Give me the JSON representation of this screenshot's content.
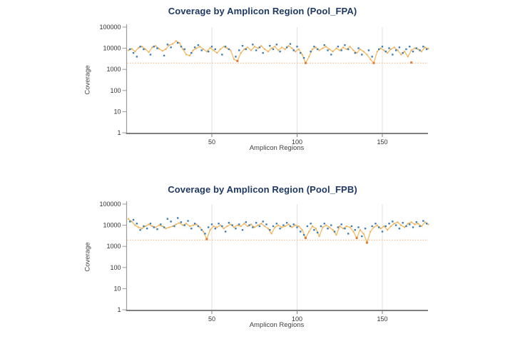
{
  "page": {
    "background": "#ffffff"
  },
  "colors": {
    "title": "#1f3864",
    "line": "#f2c06a",
    "line_marker": "#eab05e",
    "scatter": "#3d7eb8",
    "low_marker": "#e07b39",
    "threshold": "#f4bc8e",
    "grid": "#e0e0e0",
    "y_axis": "#9a9a9a",
    "x_axis": "#7f7f7f",
    "tick_text": "#333333",
    "axis_label_text": "#3f3f3f"
  },
  "chart_data": [
    {
      "type": "line",
      "title": "Coverage by Amplicon Region (Pool_FPA)",
      "xlabel": "Amplicon Regions",
      "ylabel": "Coverage",
      "x_ticks": [
        50,
        100,
        150
      ],
      "y_ticks": [
        1,
        10,
        100,
        1000,
        10000,
        100000
      ],
      "xlim": [
        0,
        177
      ],
      "ylim": [
        1,
        100000
      ],
      "y_scale": "log",
      "grid": "vertical-only",
      "legend": "none",
      "threshold_line": 2000,
      "series": [
        {
          "name": "amplicon-coverage-line",
          "type": "line",
          "x_start": 1,
          "x_step": 2,
          "values": [
            8000,
            9500,
            7000,
            10500,
            12000,
            9000,
            6500,
            11000,
            13000,
            9500,
            7500,
            9000,
            14000,
            16000,
            22000,
            18000,
            9000,
            5000,
            4500,
            8000,
            10000,
            12000,
            9000,
            7000,
            10500,
            8000,
            6000,
            9000,
            12000,
            10000,
            8000,
            3000,
            2500,
            6000,
            9000,
            11000,
            8000,
            12000,
            10000,
            13000,
            9000,
            7000,
            10000,
            12000,
            8000,
            11000,
            9000,
            13000,
            10000,
            7000,
            9000,
            5000,
            2000,
            4000,
            9000,
            11000,
            8000,
            10000,
            12000,
            9000,
            7000,
            10000,
            8000,
            11000,
            9000,
            12000,
            8000,
            6000,
            9000,
            7000,
            5000,
            3000,
            2000,
            7000,
            10000,
            8000,
            6000,
            9000,
            11000,
            8000,
            5000,
            7000,
            4000,
            8000,
            10000,
            9000,
            7000,
            11000,
            9500
          ]
        },
        {
          "name": "coverage-scatter",
          "type": "scatter",
          "points": [
            [
              2,
              9000
            ],
            [
              4,
              6000
            ],
            [
              6,
              4000
            ],
            [
              8,
              12000
            ],
            [
              10,
              9000
            ],
            [
              14,
              5000
            ],
            [
              16,
              12000
            ],
            [
              18,
              10000
            ],
            [
              22,
              4500
            ],
            [
              24,
              15000
            ],
            [
              26,
              11000
            ],
            [
              30,
              18000
            ],
            [
              32,
              12000
            ],
            [
              34,
              9000
            ],
            [
              38,
              6000
            ],
            [
              40,
              11000
            ],
            [
              42,
              14000
            ],
            [
              44,
              8000
            ],
            [
              48,
              7000
            ],
            [
              50,
              12000
            ],
            [
              52,
              9000
            ],
            [
              56,
              5000
            ],
            [
              58,
              12000
            ],
            [
              60,
              9000
            ],
            [
              64,
              4000
            ],
            [
              66,
              8000
            ],
            [
              68,
              13000
            ],
            [
              70,
              9000
            ],
            [
              74,
              15000
            ],
            [
              76,
              8000
            ],
            [
              78,
              11000
            ],
            [
              80,
              6000
            ],
            [
              84,
              13000
            ],
            [
              86,
              9000
            ],
            [
              88,
              15000
            ],
            [
              90,
              7000
            ],
            [
              94,
              11000
            ],
            [
              96,
              16000
            ],
            [
              98,
              8000
            ],
            [
              100,
              12000
            ],
            [
              102,
              6000
            ],
            [
              104,
              3500
            ],
            [
              108,
              7000
            ],
            [
              110,
              12000
            ],
            [
              112,
              9000
            ],
            [
              116,
              14000
            ],
            [
              118,
              8000
            ],
            [
              120,
              5000
            ],
            [
              124,
              12000
            ],
            [
              126,
              8000
            ],
            [
              128,
              14000
            ],
            [
              130,
              9000
            ],
            [
              134,
              6000
            ],
            [
              136,
              10000
            ],
            [
              138,
              5000
            ],
            [
              142,
              8000
            ],
            [
              144,
              4000
            ],
            [
              148,
              9000
            ],
            [
              150,
              12000
            ],
            [
              152,
              7000
            ],
            [
              154,
              10000
            ],
            [
              156,
              5000
            ],
            [
              158,
              8000
            ],
            [
              160,
              11000
            ],
            [
              162,
              6000
            ],
            [
              164,
              9000
            ],
            [
              166,
              12000
            ],
            [
              168,
              7000
            ],
            [
              170,
              10000
            ],
            [
              172,
              8000
            ],
            [
              174,
              12000
            ],
            [
              176,
              9000
            ]
          ]
        },
        {
          "name": "low-coverage-points",
          "type": "scatter-low",
          "points": [
            [
              167,
              2100
            ]
          ]
        }
      ]
    },
    {
      "type": "line",
      "title": "Coverage by Amplicon Region (Pool_FPB)",
      "xlabel": "Amplicon Regions",
      "ylabel": "Coverage",
      "x_ticks": [
        50,
        100,
        150
      ],
      "y_ticks": [
        1,
        10,
        100,
        1000,
        10000,
        100000
      ],
      "xlim": [
        0,
        177
      ],
      "ylim": [
        1,
        100000
      ],
      "y_scale": "log",
      "grid": "vertical-only",
      "legend": "none",
      "threshold_line": 2000,
      "series": [
        {
          "name": "amplicon-coverage-line",
          "type": "line",
          "x_start": 1,
          "x_step": 2,
          "values": [
            20000,
            15000,
            10000,
            8000,
            7000,
            9000,
            11000,
            9000,
            8000,
            10000,
            9000,
            7000,
            8000,
            9000,
            11000,
            13000,
            10000,
            12000,
            9000,
            10000,
            11000,
            8000,
            5000,
            2200,
            6000,
            9000,
            8000,
            10000,
            7000,
            9000,
            11000,
            8000,
            10000,
            9000,
            12000,
            9000,
            11000,
            8000,
            10000,
            12000,
            9000,
            7000,
            4000,
            8000,
            10000,
            8000,
            9000,
            11000,
            8000,
            10000,
            9000,
            6000,
            2500,
            5000,
            9000,
            7000,
            3000,
            8000,
            10000,
            8000,
            6000,
            3500,
            9000,
            7000,
            9000,
            8000,
            5000,
            2500,
            6000,
            4000,
            1500,
            5000,
            8000,
            10000,
            7000,
            9000,
            6000,
            9000,
            12000,
            14000,
            10000,
            8000,
            12000,
            14000,
            11000,
            12000,
            9000,
            14000,
            11000
          ]
        },
        {
          "name": "coverage-scatter",
          "type": "scatter",
          "points": [
            [
              2,
              15000
            ],
            [
              4,
              18000
            ],
            [
              6,
              12000
            ],
            [
              8,
              6000
            ],
            [
              10,
              9000
            ],
            [
              12,
              7000
            ],
            [
              14,
              12000
            ],
            [
              16,
              8000
            ],
            [
              18,
              6500
            ],
            [
              20,
              11000
            ],
            [
              22,
              8000
            ],
            [
              24,
              20000
            ],
            [
              26,
              15000
            ],
            [
              28,
              9000
            ],
            [
              30,
              22000
            ],
            [
              32,
              14000
            ],
            [
              34,
              10000
            ],
            [
              36,
              16000
            ],
            [
              38,
              7000
            ],
            [
              40,
              12000
            ],
            [
              42,
              9000
            ],
            [
              44,
              6000
            ],
            [
              46,
              4000
            ],
            [
              48,
              8000
            ],
            [
              50,
              11000
            ],
            [
              52,
              7000
            ],
            [
              54,
              12000
            ],
            [
              56,
              9000
            ],
            [
              58,
              5000
            ],
            [
              60,
              13000
            ],
            [
              62,
              10000
            ],
            [
              64,
              7000
            ],
            [
              66,
              11000
            ],
            [
              68,
              6000
            ],
            [
              70,
              14000
            ],
            [
              72,
              10000
            ],
            [
              74,
              8000
            ],
            [
              76,
              13000
            ],
            [
              78,
              9000
            ],
            [
              80,
              15000
            ],
            [
              82,
              11000
            ],
            [
              84,
              6000
            ],
            [
              86,
              9000
            ],
            [
              88,
              12000
            ],
            [
              90,
              7000
            ],
            [
              92,
              10000
            ],
            [
              94,
              13000
            ],
            [
              96,
              9000
            ],
            [
              98,
              11000
            ],
            [
              100,
              8000
            ],
            [
              102,
              5000
            ],
            [
              104,
              3500
            ],
            [
              106,
              9000
            ],
            [
              108,
              12000
            ],
            [
              110,
              6000
            ],
            [
              112,
              4500
            ],
            [
              114,
              9000
            ],
            [
              116,
              12000
            ],
            [
              118,
              7000
            ],
            [
              120,
              10000
            ],
            [
              122,
              5000
            ],
            [
              124,
              8000
            ],
            [
              126,
              11000
            ],
            [
              128,
              7000
            ],
            [
              130,
              4000
            ],
            [
              132,
              9000
            ],
            [
              134,
              6000
            ],
            [
              136,
              8000
            ],
            [
              138,
              3000
            ],
            [
              140,
              7000
            ],
            [
              144,
              9000
            ],
            [
              146,
              12000
            ],
            [
              148,
              8000
            ],
            [
              150,
              5000
            ],
            [
              152,
              9000
            ],
            [
              154,
              12000
            ],
            [
              156,
              15000
            ],
            [
              158,
              10000
            ],
            [
              160,
              7000
            ],
            [
              162,
              13000
            ],
            [
              164,
              9000
            ],
            [
              166,
              11000
            ],
            [
              168,
              8000
            ],
            [
              170,
              14000
            ],
            [
              172,
              9000
            ],
            [
              174,
              16000
            ],
            [
              176,
              12000
            ]
          ]
        },
        {
          "name": "low-coverage-points",
          "type": "scatter-low",
          "points": []
        }
      ]
    }
  ]
}
